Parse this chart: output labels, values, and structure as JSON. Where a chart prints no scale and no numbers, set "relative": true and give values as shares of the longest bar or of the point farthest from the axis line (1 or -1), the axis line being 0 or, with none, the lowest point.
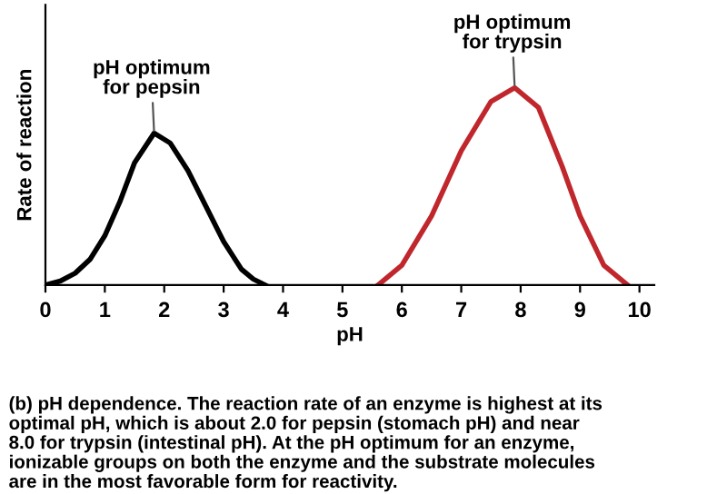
{
  "chart_data": {
    "type": "line",
    "relative": true,
    "xlabel": "pH",
    "ylabel": "Rate of reaction",
    "xlim": [
      0,
      10.25
    ],
    "xticks": [
      0,
      1,
      2,
      3,
      4,
      5,
      6,
      7,
      8,
      9,
      10
    ],
    "grid": false,
    "legend": false,
    "marker": "none",
    "line_style": "solid",
    "series": [
      {
        "color": "#000000",
        "x": [
          0,
          0.25,
          0.5,
          0.75,
          1,
          1.25,
          1.5,
          1.83,
          2.1,
          2.4,
          2.7,
          3.0,
          3.3,
          3.5,
          3.7
        ],
        "values": [
          0,
          0.02,
          0.06,
          0.13,
          0.25,
          0.42,
          0.62,
          0.77,
          0.72,
          0.58,
          0.4,
          0.22,
          0.08,
          0.03,
          0
        ]
      },
      {
        "color": "#c0272d",
        "x": [
          5.6,
          6.0,
          6.5,
          7.0,
          7.5,
          7.9,
          8.3,
          8.7,
          9.0,
          9.4,
          9.8
        ],
        "values": [
          0,
          0.1,
          0.35,
          0.68,
          0.93,
          1,
          0.9,
          0.6,
          0.35,
          0.1,
          0
        ]
      }
    ],
    "annotations": [
      {
        "text": "pH optimum\nfor pepsin",
        "x": 1.83,
        "y": 0.77
      },
      {
        "text": "pH optimum\nfor trypsin",
        "x": 7.9,
        "y": 1
      },
      "(b) pH dependence. The reaction rate of an enzyme is highest at its\noptimal pH, which is about 2.0 for pepsin (stomach pH) and near\n8.0 for trypsin (intestinal pH). At the pH optimum for an enzyme,\nionizable groups on both the enzyme and the substrate molecules\nare in the most favorable form for reactivity."
    ]
  }
}
